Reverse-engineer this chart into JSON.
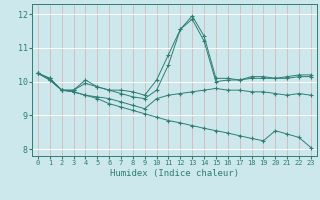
{
  "xlabel": "Humidex (Indice chaleur)",
  "xlim": [
    -0.5,
    23.5
  ],
  "ylim": [
    7.8,
    12.3
  ],
  "yticks": [
    8,
    9,
    10,
    11,
    12
  ],
  "xticks": [
    0,
    1,
    2,
    3,
    4,
    5,
    6,
    7,
    8,
    9,
    10,
    11,
    12,
    13,
    14,
    15,
    16,
    17,
    18,
    19,
    20,
    21,
    22,
    23
  ],
  "bg_color": "#cde8ec",
  "line_color": "#2e7d74",
  "lines": [
    {
      "x": [
        0,
        1,
        2,
        3,
        4,
        5,
        6,
        7,
        8,
        9,
        10,
        11,
        12,
        13,
        14,
        15,
        16,
        17,
        18,
        19,
        20,
        21,
        22,
        23
      ],
      "y": [
        10.25,
        10.1,
        9.75,
        9.75,
        10.05,
        9.85,
        9.75,
        9.75,
        9.7,
        9.6,
        10.05,
        10.8,
        11.55,
        11.95,
        11.35,
        10.1,
        10.1,
        10.05,
        10.15,
        10.15,
        10.1,
        10.15,
        10.2,
        10.2
      ]
    },
    {
      "x": [
        0,
        1,
        2,
        3,
        4,
        5,
        6,
        7,
        8,
        9,
        10,
        11,
        12,
        13,
        14,
        15,
        16,
        17,
        18,
        19,
        20,
        21,
        22,
        23
      ],
      "y": [
        10.25,
        10.1,
        9.75,
        9.75,
        9.95,
        9.85,
        9.75,
        9.65,
        9.55,
        9.5,
        9.75,
        10.5,
        11.55,
        11.85,
        11.2,
        10.0,
        10.05,
        10.05,
        10.1,
        10.1,
        10.1,
        10.1,
        10.15,
        10.15
      ]
    },
    {
      "x": [
        0,
        1,
        2,
        3,
        4,
        5,
        6,
        7,
        8,
        9,
        10,
        11,
        12,
        13,
        14,
        15,
        16,
        17,
        18,
        19,
        20,
        21,
        22,
        23
      ],
      "y": [
        10.25,
        10.05,
        9.75,
        9.7,
        9.6,
        9.5,
        9.35,
        9.25,
        9.15,
        9.05,
        8.95,
        8.85,
        8.78,
        8.7,
        8.62,
        8.55,
        8.48,
        8.4,
        8.32,
        8.25,
        8.55,
        8.45,
        8.35,
        8.05
      ]
    },
    {
      "x": [
        0,
        1,
        2,
        3,
        4,
        5,
        6,
        7,
        8,
        9,
        10,
        11,
        12,
        13,
        14,
        15,
        16,
        17,
        18,
        19,
        20,
        21,
        22,
        23
      ],
      "y": [
        10.25,
        10.05,
        9.75,
        9.7,
        9.6,
        9.55,
        9.5,
        9.4,
        9.3,
        9.2,
        9.5,
        9.6,
        9.65,
        9.7,
        9.75,
        9.8,
        9.75,
        9.75,
        9.7,
        9.7,
        9.65,
        9.6,
        9.65,
        9.6
      ]
    }
  ]
}
